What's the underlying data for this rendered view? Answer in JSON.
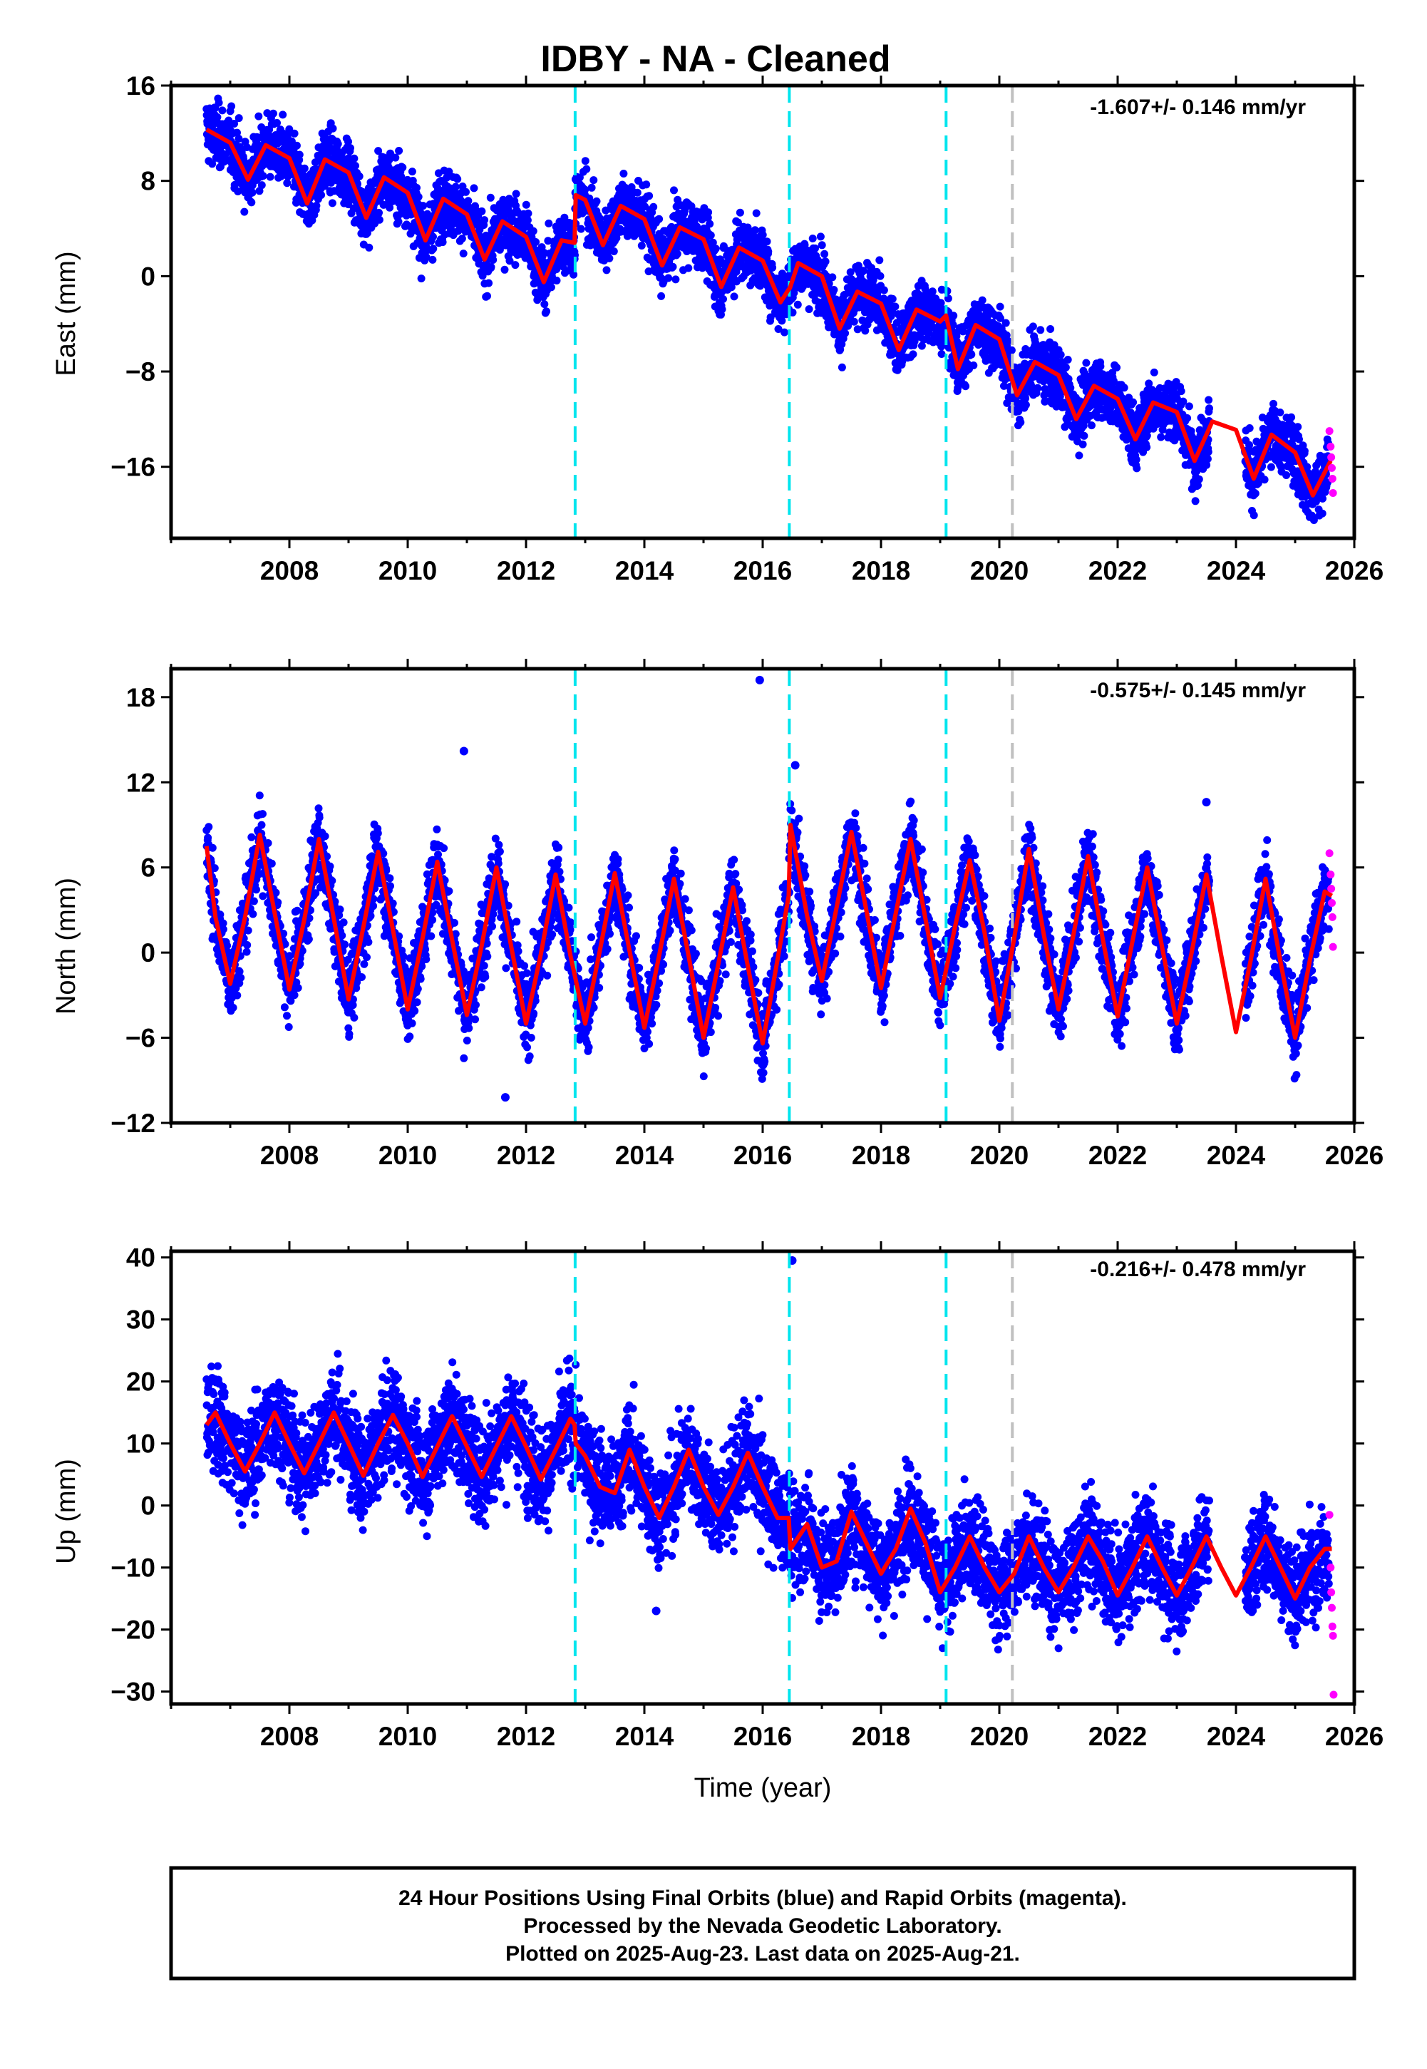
{
  "title": "IDBY  - NA - Cleaned",
  "xlabel": "Time (year)",
  "footer": {
    "line1": "24 Hour Positions Using Final Orbits (blue) and Rapid Orbits (magenta).",
    "line2": "Processed by the Nevada Geodetic Laboratory.",
    "line3": "Plotted on 2025-Aug-23. Last data on 2025-Aug-21."
  },
  "colors": {
    "final_points": "#0000ff",
    "rapid_points": "#ff00ff",
    "model": "#ff0000",
    "equipment_change": "#00e5ee",
    "other_event": "#c0c0c0"
  },
  "chart_data": [
    {
      "type": "scatter",
      "component": "east",
      "ylabel": "East (mm)",
      "rate_label": "-1.607+/- 0.146 mm/yr",
      "xlim": [
        2006.0,
        2026.0
      ],
      "ylim": [
        -22,
        16
      ],
      "xticks": [
        2008,
        2010,
        2012,
        2014,
        2016,
        2018,
        2020,
        2022,
        2024,
        2026
      ],
      "yticks": [
        -16,
        -8,
        0,
        8,
        16
      ],
      "events": [
        {
          "x": 2012.83,
          "kind": "equipment_change"
        },
        {
          "x": 2016.45,
          "kind": "equipment_change"
        },
        {
          "x": 2019.1,
          "kind": "equipment_change"
        },
        {
          "x": 2020.22,
          "kind": "other_event"
        }
      ],
      "model": {
        "x": [
          2006.6,
          2007.0,
          2007.3,
          2007.6,
          2008.0,
          2008.3,
          2008.6,
          2009.0,
          2009.3,
          2009.6,
          2010.0,
          2010.3,
          2010.6,
          2011.0,
          2011.3,
          2011.6,
          2012.0,
          2012.3,
          2012.6,
          2012.82,
          2012.84,
          2013.0,
          2013.3,
          2013.6,
          2014.0,
          2014.3,
          2014.6,
          2015.0,
          2015.3,
          2015.6,
          2016.0,
          2016.3,
          2016.44,
          2016.46,
          2016.6,
          2017.0,
          2017.3,
          2017.6,
          2018.0,
          2018.3,
          2018.6,
          2019.0,
          2019.1,
          2019.3,
          2019.6,
          2020.0,
          2020.3,
          2020.6,
          2021.0,
          2021.3,
          2021.6,
          2022.0,
          2022.3,
          2022.6,
          2023.0,
          2023.3,
          2023.6,
          2024.0,
          2024.3,
          2024.6,
          2025.0,
          2025.3,
          2025.6
        ],
        "y": [
          12.3,
          11.2,
          8.1,
          11.0,
          9.9,
          6.1,
          9.8,
          8.7,
          4.9,
          8.3,
          7.0,
          3.0,
          6.5,
          5.2,
          1.4,
          4.6,
          3.3,
          -0.5,
          3.0,
          2.8,
          6.8,
          6.4,
          2.6,
          5.9,
          4.8,
          0.9,
          4.1,
          3.1,
          -0.9,
          2.4,
          1.3,
          -2.2,
          -1.1,
          -1.0,
          1.1,
          0.0,
          -4.4,
          -1.3,
          -2.3,
          -6.2,
          -2.8,
          -3.8,
          -3.3,
          -7.8,
          -4.1,
          -5.3,
          -10.0,
          -7.2,
          -8.3,
          -12.0,
          -9.2,
          -10.3,
          -13.7,
          -10.6,
          -11.4,
          -15.5,
          -12.2,
          -12.9,
          -17.0,
          -13.3,
          -14.8,
          -18.4,
          -15.5
        ]
      },
      "rapid_points": {
        "x": [
          2025.58,
          2025.6,
          2025.61,
          2025.62,
          2025.63,
          2025.64
        ],
        "y": [
          -13.0,
          -14.3,
          -15.2,
          -16.1,
          -17.0,
          -18.2
        ]
      }
    },
    {
      "type": "scatter",
      "component": "north",
      "ylabel": "North (mm)",
      "rate_label": "-0.575+/- 0.145 mm/yr",
      "xlim": [
        2006.0,
        2026.0
      ],
      "ylim": [
        -12,
        20
      ],
      "xticks": [
        2008,
        2010,
        2012,
        2014,
        2016,
        2018,
        2020,
        2022,
        2024,
        2026
      ],
      "yticks": [
        -12,
        -6,
        0,
        6,
        12,
        18
      ],
      "events": [
        {
          "x": 2012.83,
          "kind": "equipment_change"
        },
        {
          "x": 2016.45,
          "kind": "equipment_change"
        },
        {
          "x": 2019.1,
          "kind": "equipment_change"
        },
        {
          "x": 2020.22,
          "kind": "other_event"
        }
      ],
      "model": {
        "x": [
          2006.6,
          2006.75,
          2007.0,
          2007.25,
          2007.5,
          2007.75,
          2008.0,
          2008.25,
          2008.5,
          2008.75,
          2009.0,
          2009.25,
          2009.5,
          2009.75,
          2010.0,
          2010.25,
          2010.5,
          2010.75,
          2011.0,
          2011.25,
          2011.5,
          2011.75,
          2012.0,
          2012.25,
          2012.5,
          2012.75,
          2013.0,
          2013.25,
          2013.5,
          2013.75,
          2014.0,
          2014.25,
          2014.5,
          2014.75,
          2015.0,
          2015.25,
          2015.5,
          2015.75,
          2016.0,
          2016.25,
          2016.44,
          2016.47,
          2016.75,
          2017.0,
          2017.25,
          2017.5,
          2017.75,
          2018.0,
          2018.25,
          2018.5,
          2018.75,
          2019.0,
          2019.25,
          2019.5,
          2019.75,
          2020.0,
          2020.25,
          2020.5,
          2020.75,
          2021.0,
          2021.25,
          2021.5,
          2021.75,
          2022.0,
          2022.25,
          2022.5,
          2022.75,
          2023.0,
          2023.25,
          2023.5,
          2023.75,
          2024.0,
          2024.25,
          2024.5,
          2024.75,
          2025.0,
          2025.25,
          2025.5,
          2025.62
        ],
        "y": [
          7.5,
          2.5,
          -2.2,
          2.5,
          8.3,
          2.8,
          -2.6,
          2.3,
          8.0,
          2.4,
          -3.3,
          1.8,
          7.1,
          1.6,
          -4.0,
          1.0,
          6.4,
          0.9,
          -4.4,
          0.5,
          6.0,
          0.4,
          -5.0,
          -0.1,
          5.5,
          -0.2,
          -5.0,
          0.2,
          5.6,
          0.1,
          -5.3,
          -0.2,
          5.2,
          -0.3,
          -6.0,
          -0.8,
          4.6,
          -1.0,
          -6.4,
          -0.5,
          4.0,
          9.0,
          2.6,
          -2.0,
          3.2,
          8.5,
          3.0,
          -2.5,
          2.8,
          8.0,
          2.4,
          -3.2,
          1.8,
          6.5,
          1.4,
          -4.8,
          1.0,
          7.3,
          1.3,
          -4.0,
          1.2,
          6.8,
          0.9,
          -4.5,
          0.8,
          6.0,
          0.4,
          -5.0,
          0.0,
          5.5,
          -0.2,
          -5.6,
          -0.5,
          5.2,
          -0.6,
          -6.0,
          -0.5,
          4.3,
          4.0
        ]
      },
      "outliers": {
        "x": [
          2010.95,
          2011.65,
          2015.95,
          2016.55,
          2023.5
        ],
        "y": [
          14.2,
          -10.2,
          19.2,
          13.2,
          10.6
        ]
      },
      "rapid_points": {
        "x": [
          2025.58,
          2025.6,
          2025.61,
          2025.62,
          2025.63,
          2025.64
        ],
        "y": [
          7.0,
          5.5,
          4.5,
          3.5,
          2.5,
          0.4
        ]
      }
    },
    {
      "type": "scatter",
      "component": "up",
      "ylabel": "Up (mm)",
      "rate_label": "-0.216+/- 0.478 mm/yr",
      "xlim": [
        2006.0,
        2026.0
      ],
      "ylim": [
        -32,
        41
      ],
      "xticks": [
        2008,
        2010,
        2012,
        2014,
        2016,
        2018,
        2020,
        2022,
        2024,
        2026
      ],
      "yticks": [
        -30,
        -20,
        -10,
        0,
        10,
        20,
        30,
        40
      ],
      "events": [
        {
          "x": 2012.83,
          "kind": "equipment_change"
        },
        {
          "x": 2016.45,
          "kind": "equipment_change"
        },
        {
          "x": 2019.1,
          "kind": "equipment_change"
        },
        {
          "x": 2020.22,
          "kind": "other_event"
        }
      ],
      "model": {
        "x": [
          2006.6,
          2006.75,
          2007.0,
          2007.25,
          2007.5,
          2007.75,
          2008.0,
          2008.25,
          2008.5,
          2008.75,
          2009.0,
          2009.25,
          2009.5,
          2009.75,
          2010.0,
          2010.25,
          2010.5,
          2010.75,
          2011.0,
          2011.25,
          2011.5,
          2011.75,
          2012.0,
          2012.25,
          2012.5,
          2012.75,
          2012.82,
          2012.84,
          2013.0,
          2013.25,
          2013.5,
          2013.75,
          2014.0,
          2014.25,
          2014.5,
          2014.75,
          2015.0,
          2015.25,
          2015.5,
          2015.75,
          2016.0,
          2016.25,
          2016.44,
          2016.47,
          2016.75,
          2017.0,
          2017.25,
          2017.5,
          2017.75,
          2018.0,
          2018.25,
          2018.5,
          2018.75,
          2019.0,
          2019.25,
          2019.5,
          2019.75,
          2020.0,
          2020.25,
          2020.5,
          2020.75,
          2021.0,
          2021.25,
          2021.5,
          2021.75,
          2022.0,
          2022.25,
          2022.5,
          2022.75,
          2023.0,
          2023.25,
          2023.5,
          2023.75,
          2024.0,
          2024.25,
          2024.5,
          2024.75,
          2025.0,
          2025.25,
          2025.5,
          2025.62
        ],
        "y": [
          13.0,
          15.0,
          10.0,
          5.5,
          10.0,
          15.0,
          10.0,
          5.2,
          10.0,
          15.0,
          10.0,
          4.8,
          10.0,
          14.6,
          10.0,
          4.6,
          9.5,
          14.4,
          9.5,
          4.6,
          9.5,
          14.4,
          9.5,
          4.2,
          9.0,
          14.0,
          13.0,
          10.0,
          8.0,
          3.0,
          2.0,
          9.0,
          3.0,
          -2.0,
          3.0,
          9.0,
          3.0,
          -1.5,
          3.0,
          8.5,
          3.0,
          -2.0,
          -2.0,
          -7.0,
          -3.0,
          -10.0,
          -9.0,
          -1.0,
          -6.0,
          -11.0,
          -7.0,
          -0.5,
          -6.0,
          -14.0,
          -10.0,
          -5.0,
          -10.0,
          -14.0,
          -11.0,
          -5.0,
          -10.0,
          -14.0,
          -10.0,
          -5.0,
          -9.0,
          -14.5,
          -10.0,
          -5.0,
          -10.0,
          -14.5,
          -10.0,
          -5.0,
          -10.0,
          -14.5,
          -10.0,
          -5.0,
          -10.0,
          -15.0,
          -10.0,
          -7.0,
          -7.0
        ]
      },
      "outliers": {
        "x": [
          2014.2,
          2016.5
        ],
        "y": [
          -17.0,
          39.5
        ]
      },
      "rapid_points": {
        "x": [
          2025.58,
          2025.6,
          2025.61,
          2025.62,
          2025.63,
          2025.64,
          2025.65
        ],
        "y": [
          -1.5,
          -10.0,
          -14.0,
          -16.5,
          -19.5,
          -21.0,
          -30.5
        ]
      }
    }
  ]
}
